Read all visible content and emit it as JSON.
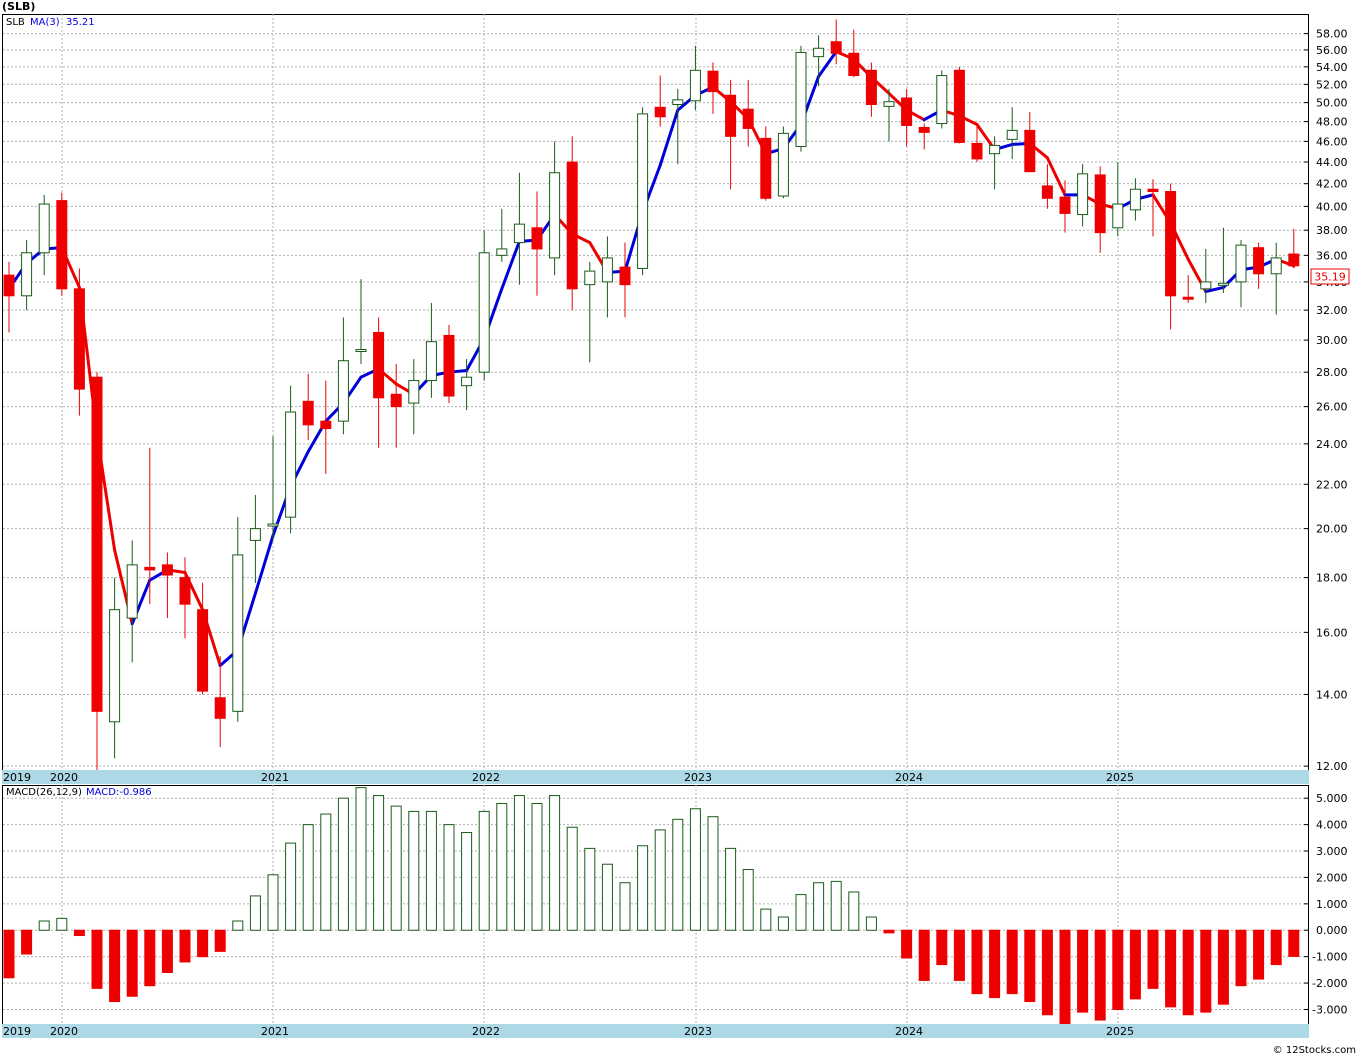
{
  "ticker_title": "(SLB)",
  "price_legend": {
    "symbol": "SLB",
    "ma_label": "MA(3)",
    "ma_value": "35.21"
  },
  "macd_legend": {
    "label": "MACD(26,12,9)",
    "value_label": "MACD:-0.986"
  },
  "last_price_tag": "35.19",
  "footer_credit": "© 12Stocks.com",
  "colors": {
    "up_candle_fill": "#ffffff",
    "up_candle_stroke": "#1a5c1a",
    "down_candle": "#ee0000",
    "ma_up": "#0000dd",
    "ma_down": "#ee0000",
    "macd_pos_stroke": "#1a5c1a",
    "macd_neg": "#ee0000",
    "axis_band": "#add8e6",
    "grid": "#b0b0b0"
  },
  "chart_data": [
    {
      "type": "candlestick",
      "title": "(SLB)",
      "scale": "log",
      "ylim": [
        11.9,
        60.5
      ],
      "y_ticks": [
        "12.00",
        "14.00",
        "16.00",
        "18.00",
        "20.00",
        "22.00",
        "24.00",
        "26.00",
        "28.00",
        "30.00",
        "32.00",
        "34.00",
        "36.00",
        "38.00",
        "40.00",
        "42.00",
        "44.00",
        "46.00",
        "48.00",
        "50.00",
        "52.00",
        "54.00",
        "56.00",
        "58.00"
      ],
      "x_labels": [
        "2019",
        "2020",
        "2021",
        "2022",
        "2023",
        "2024",
        "2025"
      ],
      "grid": true,
      "series": [
        {
          "name": "SLB",
          "ohlc": [
            [
              34.5,
              35.5,
              30.5,
              33.0
            ],
            [
              33.0,
              37.2,
              32.0,
              36.2
            ],
            [
              36.2,
              41.0,
              34.5,
              40.2
            ],
            [
              40.5,
              41.2,
              33.0,
              33.5
            ],
            [
              33.5,
              35.0,
              25.5,
              27.0
            ],
            [
              27.7,
              28.0,
              11.9,
              13.5
            ],
            [
              13.2,
              18.0,
              12.2,
              16.8
            ],
            [
              16.5,
              19.5,
              15.0,
              18.5
            ],
            [
              18.4,
              23.8,
              17.0,
              18.3
            ],
            [
              18.5,
              19.0,
              16.5,
              18.1
            ],
            [
              18.0,
              18.8,
              15.8,
              17.0
            ],
            [
              16.8,
              17.8,
              14.0,
              14.1
            ],
            [
              13.9,
              15.2,
              12.5,
              13.3
            ],
            [
              13.5,
              20.5,
              13.2,
              18.9
            ],
            [
              19.5,
              21.5,
              17.8,
              20.0
            ],
            [
              20.2,
              24.4,
              19.5,
              20.2
            ],
            [
              20.5,
              27.2,
              19.8,
              25.7
            ],
            [
              26.3,
              27.9,
              24.2,
              25.0
            ],
            [
              25.2,
              27.5,
              22.5,
              24.8
            ],
            [
              25.2,
              31.5,
              24.5,
              28.7
            ],
            [
              29.3,
              34.2,
              28.5,
              29.4
            ],
            [
              30.5,
              31.5,
              23.8,
              26.5
            ],
            [
              26.7,
              28.5,
              23.8,
              26.0
            ],
            [
              26.2,
              28.8,
              24.5,
              27.5
            ],
            [
              27.5,
              32.5,
              26.5,
              29.9
            ],
            [
              30.3,
              31.0,
              26.2,
              26.6
            ],
            [
              27.2,
              28.8,
              25.8,
              27.7
            ],
            [
              28.0,
              38.0,
              27.5,
              36.2
            ],
            [
              36.0,
              39.8,
              35.5,
              36.5
            ],
            [
              37.0,
              43.0,
              33.8,
              38.5
            ],
            [
              38.2,
              41.3,
              33.0,
              36.5
            ],
            [
              35.8,
              46.0,
              34.5,
              43.0
            ],
            [
              44.0,
              46.5,
              32.0,
              33.5
            ],
            [
              33.8,
              35.5,
              28.6,
              34.8
            ],
            [
              34.0,
              37.5,
              31.5,
              35.8
            ],
            [
              35.1,
              37.0,
              31.5,
              33.8
            ],
            [
              35.0,
              49.5,
              34.5,
              48.8
            ],
            [
              49.5,
              53.0,
              47.5,
              48.5
            ],
            [
              49.8,
              51.5,
              43.8,
              50.3
            ],
            [
              50.2,
              56.5,
              49.2,
              53.6
            ],
            [
              53.5,
              54.5,
              48.8,
              51.2
            ],
            [
              50.8,
              52.5,
              41.5,
              46.5
            ],
            [
              49.3,
              52.5,
              45.5,
              47.3
            ],
            [
              46.3,
              47.5,
              40.5,
              40.7
            ],
            [
              40.9,
              47.5,
              40.7,
              46.8
            ],
            [
              45.5,
              56.5,
              45.0,
              55.7
            ],
            [
              55.2,
              57.8,
              51.8,
              56.2
            ],
            [
              57.0,
              59.8,
              54.3,
              55.6
            ],
            [
              55.6,
              58.5,
              52.8,
              53.0
            ],
            [
              53.6,
              54.5,
              48.5,
              49.8
            ],
            [
              49.6,
              51.5,
              46.0,
              50.1
            ],
            [
              50.5,
              51.5,
              45.5,
              47.6
            ],
            [
              47.4,
              47.8,
              45.2,
              46.9
            ],
            [
              47.8,
              53.6,
              47.3,
              53.0
            ],
            [
              53.6,
              54.0,
              45.8,
              45.9
            ],
            [
              45.8,
              47.6,
              44.0,
              44.3
            ],
            [
              44.8,
              46.5,
              41.5,
              45.6
            ],
            [
              46.2,
              49.5,
              44.3,
              47.1
            ],
            [
              47.1,
              49.0,
              43.3,
              43.1
            ],
            [
              41.8,
              43.8,
              39.8,
              40.7
            ],
            [
              40.8,
              42.3,
              37.8,
              39.4
            ],
            [
              39.3,
              43.8,
              38.3,
              42.9
            ],
            [
              42.8,
              43.6,
              36.2,
              37.8
            ],
            [
              38.2,
              44.0,
              37.5,
              40.2
            ],
            [
              39.7,
              42.5,
              38.8,
              41.5
            ],
            [
              41.5,
              42.4,
              37.5,
              41.3
            ],
            [
              41.3,
              42.0,
              30.7,
              33.0
            ],
            [
              32.9,
              34.5,
              32.5,
              32.8
            ],
            [
              33.5,
              36.5,
              32.5,
              34.0
            ],
            [
              33.8,
              38.2,
              33.2,
              33.9
            ],
            [
              34.0,
              37.2,
              32.2,
              36.8
            ],
            [
              36.6,
              37.0,
              33.5,
              34.6
            ],
            [
              34.6,
              37.0,
              31.7,
              35.8
            ],
            [
              36.1,
              38.1,
              35.0,
              35.2
            ]
          ]
        },
        {
          "name": "MA(3)",
          "values": [
            33.5,
            35.4,
            36.5,
            36.6,
            33.6,
            24.5,
            19.1,
            16.3,
            17.9,
            18.3,
            18.2,
            16.8,
            14.9,
            15.4,
            17.4,
            19.7,
            21.9,
            23.6,
            25.2,
            26.2,
            27.7,
            28.2,
            27.3,
            26.7,
            27.8,
            28.0,
            28.1,
            30.1,
            33.5,
            37.1,
            37.2,
            39.3,
            37.7,
            37.0,
            34.7,
            34.8,
            39.5,
            43.7,
            49.2,
            50.8,
            51.7,
            50.1,
            48.3,
            44.8,
            45.3,
            47.7,
            52.9,
            55.8,
            54.9,
            52.8,
            51.0,
            49.2,
            48.2,
            49.2,
            48.6,
            47.7,
            45.2,
            45.7,
            45.8,
            44.4,
            41.0,
            41.0,
            40.2,
            39.8,
            40.6,
            41.0,
            38.6,
            35.7,
            33.3,
            33.6,
            34.9,
            35.1,
            35.7,
            35.2
          ]
        }
      ]
    },
    {
      "type": "bar",
      "title": "MACD(26,12,9)",
      "ylim": [
        -3.55,
        5.5
      ],
      "y_ticks": [
        "5.000",
        "4.000",
        "3.000",
        "2.000",
        "1.000",
        "0.000",
        "-1.000",
        "-2.000",
        "-3.000"
      ],
      "x_labels": [
        "2019",
        "2020",
        "2021",
        "2022",
        "2023",
        "2024",
        "2025"
      ],
      "series": [
        {
          "name": "MACD",
          "values": [
            -1.8,
            -0.9,
            0.35,
            0.45,
            -0.2,
            -2.2,
            -2.7,
            -2.5,
            -2.1,
            -1.6,
            -1.2,
            -1.0,
            -0.8,
            0.35,
            1.3,
            2.1,
            3.3,
            4.0,
            4.4,
            5.0,
            5.4,
            5.1,
            4.7,
            4.5,
            4.5,
            4.0,
            3.7,
            4.5,
            4.8,
            5.1,
            4.8,
            5.1,
            3.9,
            3.1,
            2.5,
            1.8,
            3.2,
            3.8,
            4.2,
            4.6,
            4.3,
            3.1,
            2.3,
            0.8,
            0.5,
            1.35,
            1.8,
            1.85,
            1.45,
            0.5,
            -0.1,
            -1.05,
            -1.9,
            -1.3,
            -1.9,
            -2.4,
            -2.55,
            -2.4,
            -2.7,
            -3.2,
            -3.55,
            -3.1,
            -3.4,
            -3.0,
            -2.6,
            -2.2,
            -2.9,
            -3.2,
            -3.1,
            -2.8,
            -2.1,
            -1.85,
            -1.3,
            -0.99
          ]
        }
      ]
    }
  ]
}
